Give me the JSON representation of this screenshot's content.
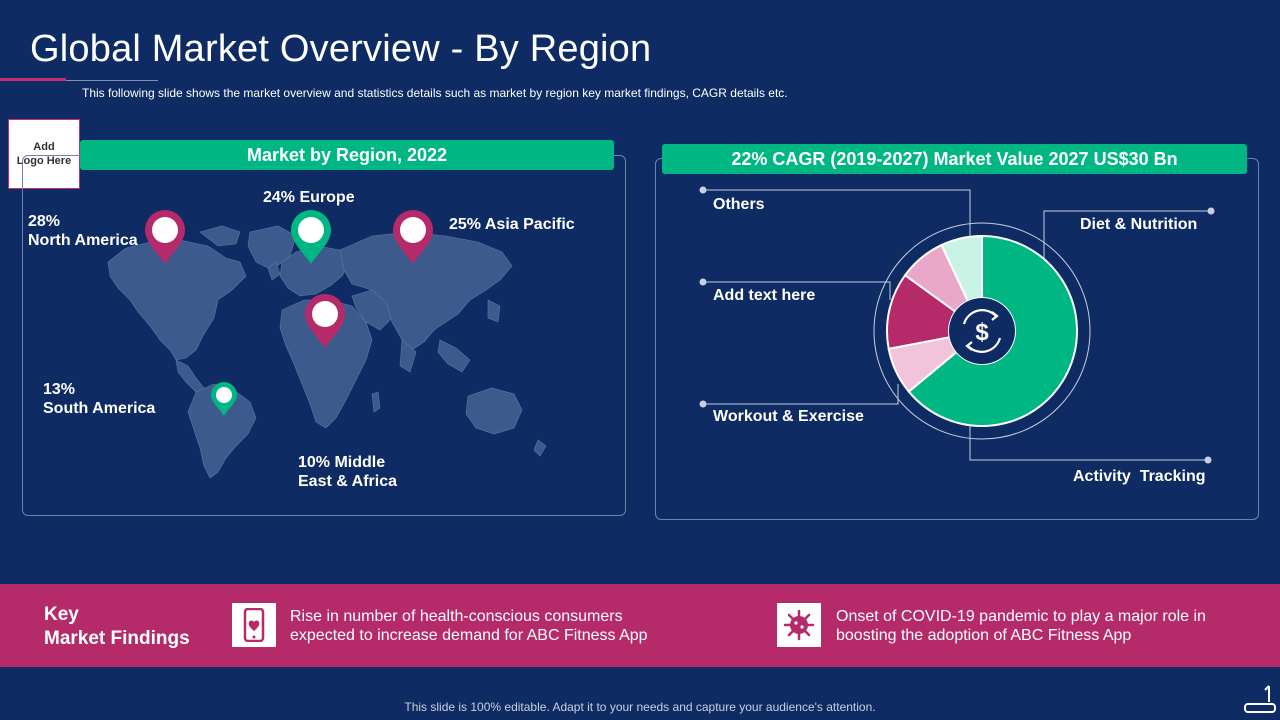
{
  "slide": {
    "title": "Global Market Overview - By Region",
    "subtitle": "This following slide shows the market overview and statistics details such as market by region key market findings, CAGR details etc.",
    "logo_placeholder": "Add\nLogo Here",
    "footer": "This slide is 100% editable. Adapt it to your needs and capture your audience's attention."
  },
  "colors": {
    "background": "#0e2c63",
    "green": "#00b783",
    "magenta": "#b52b69",
    "map": "#3c5a8c"
  },
  "map_panel": {
    "header": "Market by Region, 2022",
    "regions": [
      {
        "label": "28%\nNorth America",
        "percent": 28,
        "pin_color": "#b52b69"
      },
      {
        "label": "24% Europe",
        "percent": 24,
        "pin_color": "#00b783"
      },
      {
        "label": "25% Asia Pacific",
        "percent": 25,
        "pin_color": "#b52b69"
      },
      {
        "label": "13%\nSouth America",
        "percent": 13,
        "pin_color": "#00b783"
      },
      {
        "label": "10% Middle\nEast & Africa",
        "percent": 10,
        "pin_color": "#b52b69"
      }
    ]
  },
  "cagr_panel": {
    "header": "22% CAGR (2019-2027) Market Value 2027 US$30 Bn",
    "center_icon": "dollar-cycle-icon",
    "labels": {
      "others": "Others",
      "add_text": "Add text here",
      "workout": "Workout & Exercise",
      "diet": "Diet & Nutrition",
      "activity": "Activity  Tracking"
    }
  },
  "chart_data": {
    "type": "pie",
    "title": "",
    "categories": [
      "Diet & Nutrition",
      "Activity  Tracking",
      "Workout & Exercise",
      "Add text here",
      "Others"
    ],
    "values": [
      64,
      0,
      8,
      13,
      15
    ],
    "colors": [
      "#00b783",
      "#00b783",
      "#f2c4dc",
      "#b52b69",
      "#e9a8c9"
    ],
    "slices": [
      {
        "name": "Diet & Nutrition + Activity  Tracking",
        "value": 64,
        "color": "#00b783"
      },
      {
        "name": "Workout & Exercise",
        "value": 8,
        "color": "#f2c4dc"
      },
      {
        "name": "Add text here",
        "value": 13,
        "color": "#b52b69"
      },
      {
        "name": "Others (pink)",
        "value": 8,
        "color": "#e9a8c9"
      },
      {
        "name": "Others (mint)",
        "value": 7,
        "color": "#c9f3e5"
      }
    ]
  },
  "key_findings": {
    "title": "Key\nMarket Findings",
    "items": [
      {
        "icon": "mobile-heart-icon",
        "text": "Rise in number  of health-conscious  consumers expected to increase demand for ABC Fitness App"
      },
      {
        "icon": "virus-icon",
        "text": "Onset  of COVID-19 pandemic to play a major role in boosting the adoption of ABC Fitness App"
      }
    ]
  }
}
